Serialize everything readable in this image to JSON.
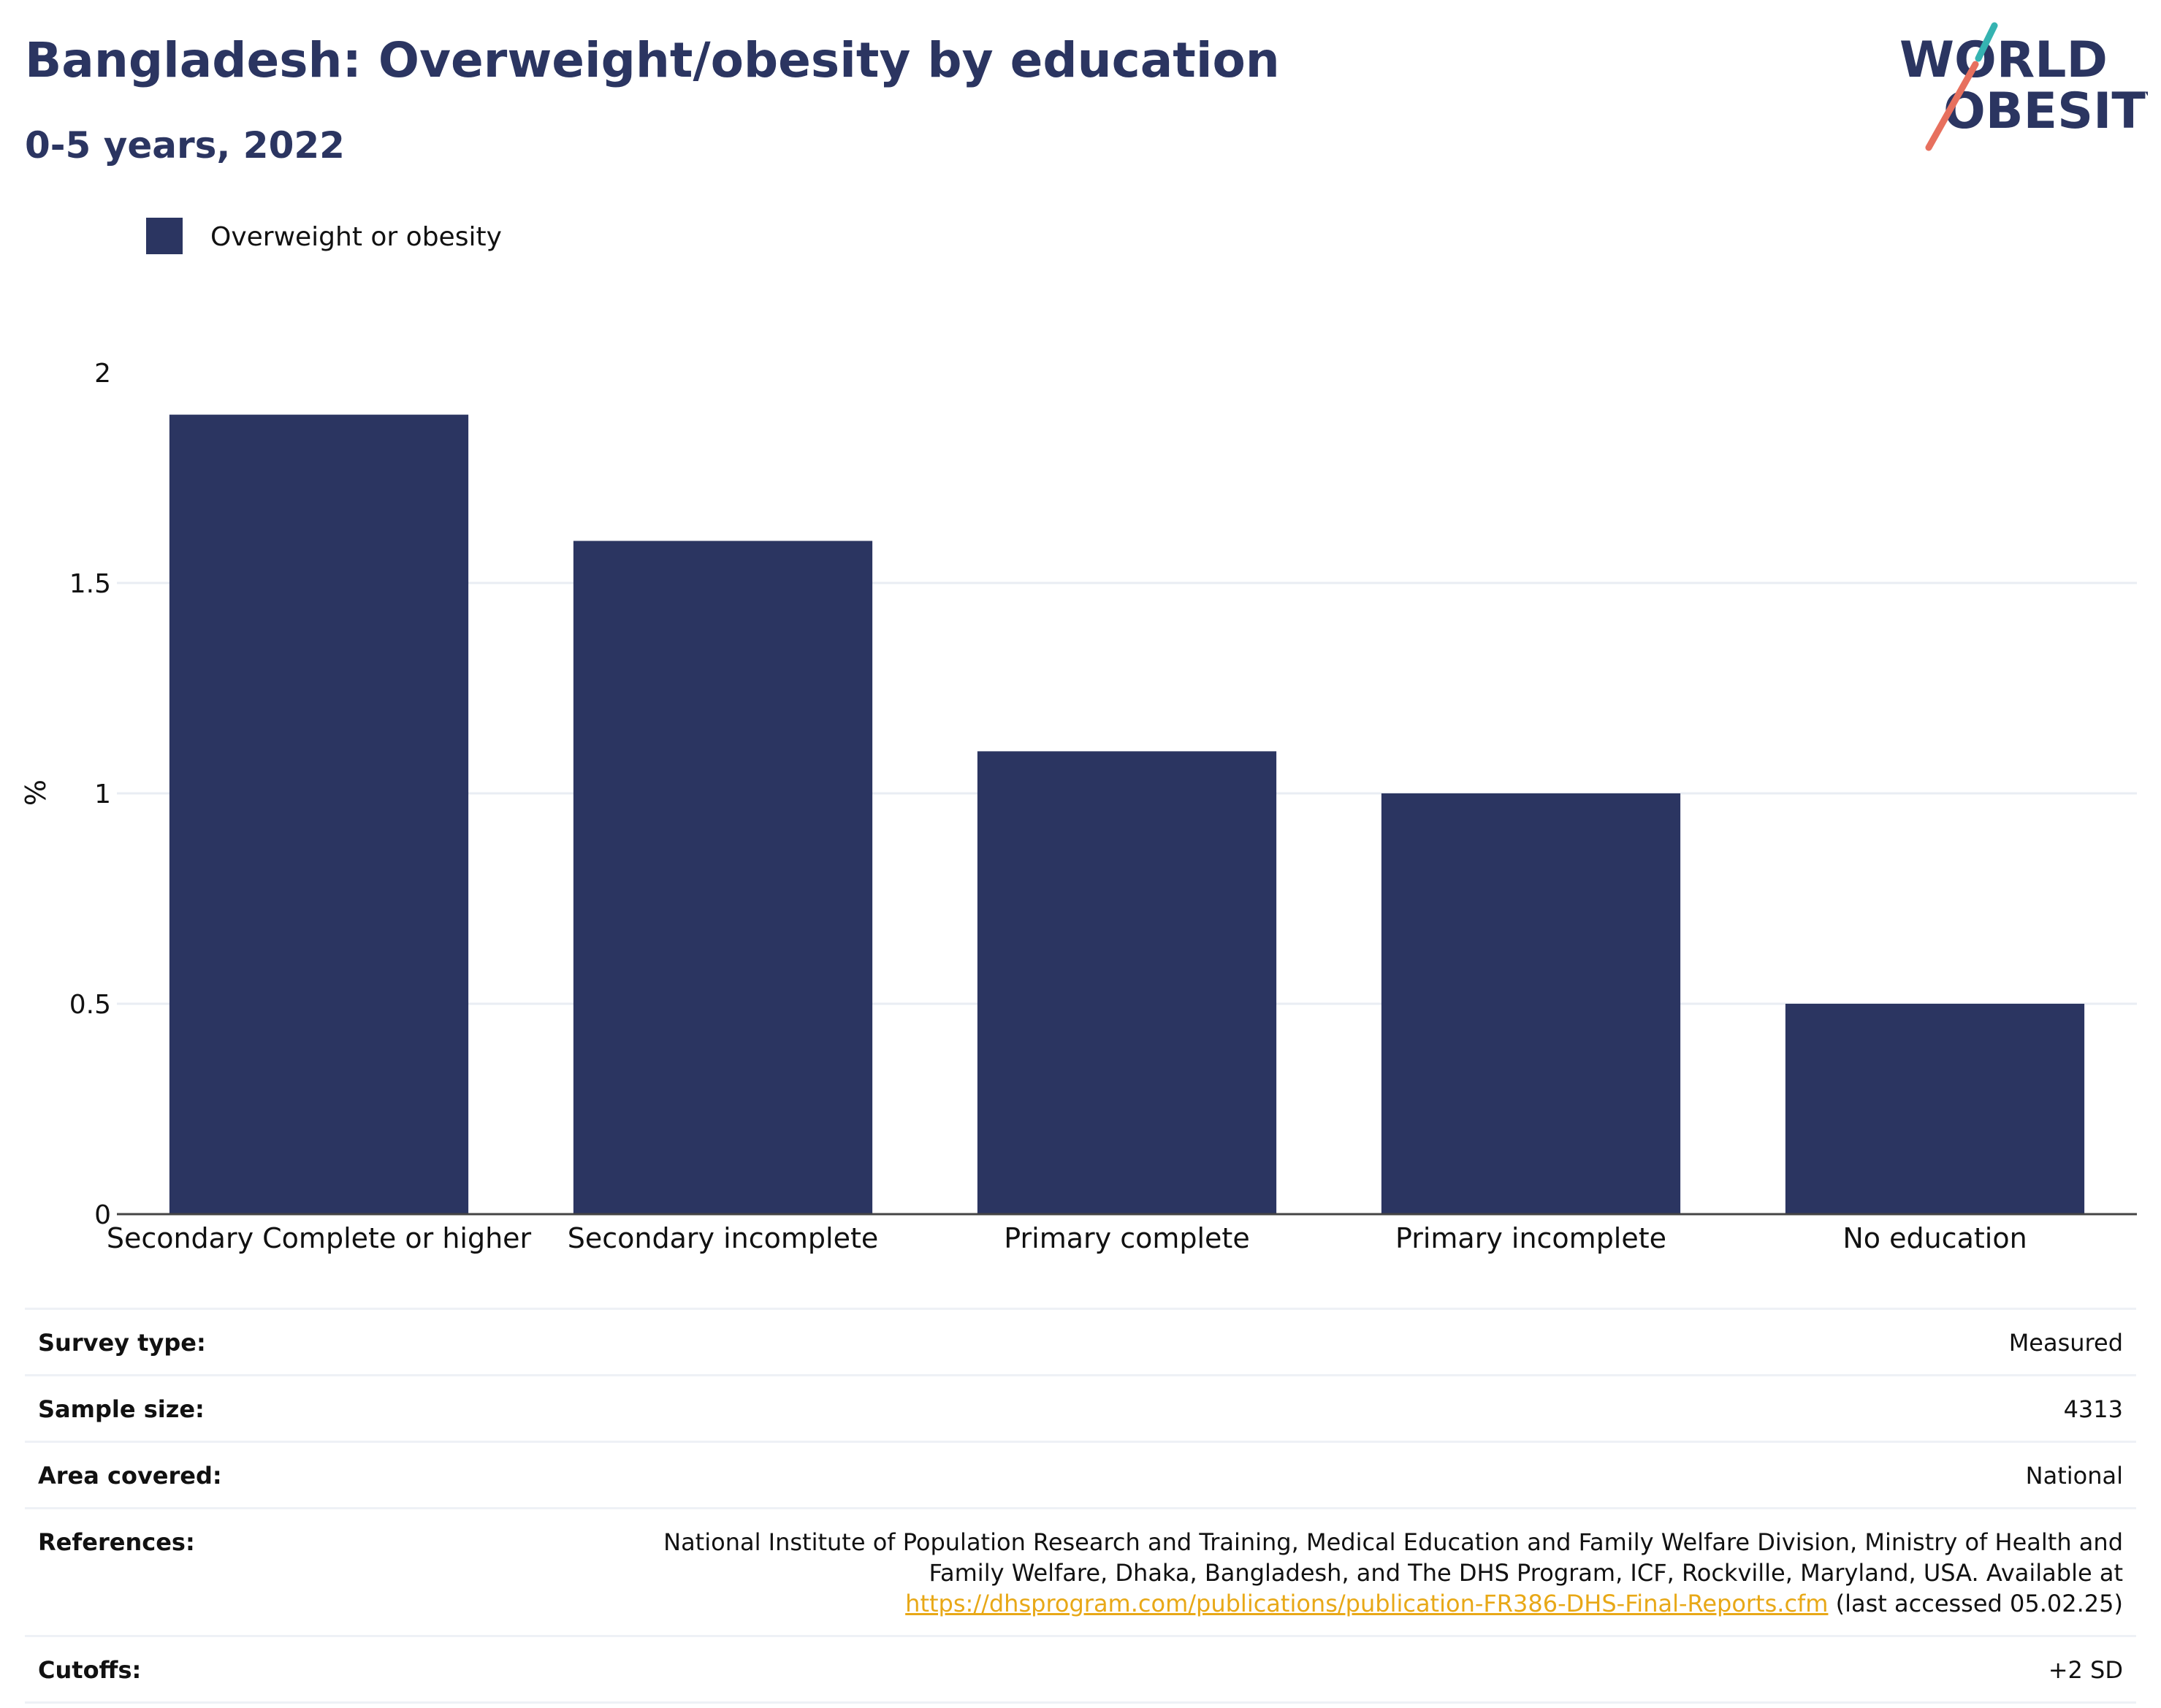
{
  "header": {
    "title": "Bangladesh: Overweight/obesity by education",
    "subtitle": "0-5 years, 2022",
    "logo_line1": "WORLD",
    "logo_line2": "OBESITY"
  },
  "colors": {
    "bar": "#2b3561",
    "title": "#2b3561",
    "logo_teal": "#35b3b1",
    "logo_coral": "#e7705e",
    "link": "#e8a817",
    "grid": "#e9edf3"
  },
  "chart_data": {
    "type": "bar",
    "categories": [
      "Secondary Complete or higher",
      "Secondary incomplete",
      "Primary complete",
      "Primary incomplete",
      "No education"
    ],
    "series": [
      {
        "name": "Overweight or obesity",
        "values": [
          1.9,
          1.6,
          1.1,
          1.0,
          0.5
        ]
      }
    ],
    "ylabel": "%",
    "xlabel": "",
    "ylim": [
      0,
      2
    ],
    "yticks": [
      "0",
      "0.5",
      "1",
      "1.5",
      "2"
    ],
    "grid": true,
    "legend_position": "top-left"
  },
  "info": {
    "rows": [
      {
        "label": "Survey type:",
        "value": "Measured"
      },
      {
        "label": "Sample size:",
        "value": "4313"
      },
      {
        "label": "Area covered:",
        "value": "National"
      },
      {
        "label": "References:",
        "value": "National Institute of Population Research and Training, Medical Education and Family Welfare Division, Ministry of Health and Family Welfare, Dhaka, Bangladesh, and The DHS Program, ICF, Rockville, Maryland, USA. Available at",
        "link": "https://dhsprogram.com/publications/publication-FR386-DHS-Final-Reports.cfm",
        "suffix": " (last accessed 05.02.25)"
      },
      {
        "label": "Cutoffs:",
        "value": "+2 SD"
      }
    ]
  }
}
